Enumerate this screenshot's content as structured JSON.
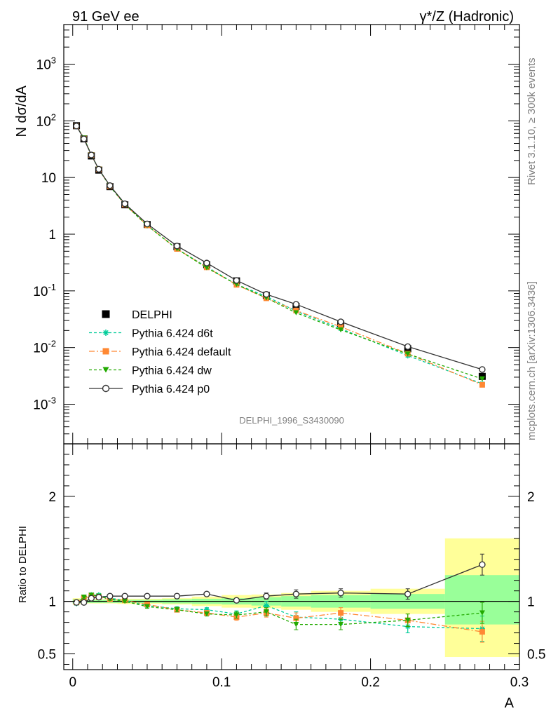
{
  "header": {
    "left_label": "91 GeV ee",
    "right_label": "γ*/Z (Hadronic)"
  },
  "side_labels": {
    "rivet": "Rivet 3.1.10, ≥ 300k events",
    "mcplots": "mcplots.cern.ch [arXiv:1306.3436]"
  },
  "watermark": "DELPHI_1996_S3430090",
  "colors": {
    "data": "#000000",
    "d6t": "#00cc99",
    "default": "#ff8833",
    "dw": "#22aa00",
    "p0": "#333333",
    "band_inner": "#99ff99",
    "band_outer": "#ffff99"
  },
  "chart_data": [
    {
      "type": "line",
      "panel": "main",
      "ylabel": "N dσ/dA",
      "xlabel": "A",
      "xlim": [
        -0.006,
        0.3
      ],
      "ylim": [
        0.0002,
        5000
      ],
      "yscale": "log",
      "ytick_labels": [
        "10^-3",
        "10^-2",
        "10^-1",
        "1",
        "10",
        "10^2",
        "10^3"
      ],
      "x": [
        0.0025,
        0.0075,
        0.0125,
        0.0175,
        0.025,
        0.035,
        0.05,
        0.07,
        0.09,
        0.11,
        0.13,
        0.15,
        0.18,
        0.225,
        0.275
      ],
      "series": [
        {
          "name": "DELPHI",
          "style": "data",
          "values": [
            82,
            48,
            24,
            13.5,
            6.9,
            3.3,
            1.48,
            0.6,
            0.29,
            0.15,
            0.083,
            0.053,
            0.026,
            0.0095,
            0.0031
          ]
        },
        {
          "name": "Pythia 6.424 d6t",
          "style": "d6t",
          "values": [
            80,
            49.5,
            25,
            14,
            7,
            3.35,
            1.42,
            0.55,
            0.265,
            0.13,
            0.08,
            0.044,
            0.0215,
            0.0072,
            0.0023
          ]
        },
        {
          "name": "Pythia 6.424 default",
          "style": "default",
          "values": [
            81,
            49.5,
            25,
            14,
            7,
            3.35,
            1.43,
            0.55,
            0.26,
            0.128,
            0.074,
            0.045,
            0.0233,
            0.0078,
            0.0022
          ]
        },
        {
          "name": "Pythia 6.424 dw",
          "style": "dw",
          "values": [
            80,
            50,
            25,
            14,
            7,
            3.35,
            1.42,
            0.55,
            0.255,
            0.13,
            0.075,
            0.041,
            0.0205,
            0.0077,
            0.0028
          ]
        },
        {
          "name": "Pythia 6.424 p0",
          "style": "p0",
          "values": [
            81,
            48,
            25,
            14,
            7.2,
            3.45,
            1.52,
            0.62,
            0.31,
            0.153,
            0.087,
            0.058,
            0.0285,
            0.0104,
            0.0041
          ]
        }
      ],
      "legend": "left, lower half",
      "grid": false
    },
    {
      "type": "line",
      "panel": "ratio",
      "ylabel": "Ratio to DELPHI",
      "xlabel": "A",
      "xlim": [
        -0.006,
        0.3
      ],
      "ylim": [
        0.35,
        2.5
      ],
      "ytick_labels": [
        "0.5",
        "1",
        "2"
      ],
      "xtick_labels": [
        "0",
        "0.1",
        "0.2",
        "0.3"
      ],
      "bands": [
        {
          "x0": 0,
          "x1": 0.005,
          "inner": [
            0.98,
            1.02
          ],
          "outer": [
            0.97,
            1.03
          ]
        },
        {
          "x0": 0.005,
          "x1": 0.01,
          "inner": [
            0.985,
            1.015
          ],
          "outer": [
            0.98,
            1.02
          ]
        },
        {
          "x0": 0.01,
          "x1": 0.015,
          "inner": [
            0.985,
            1.015
          ],
          "outer": [
            0.98,
            1.02
          ]
        },
        {
          "x0": 0.015,
          "x1": 0.02,
          "inner": [
            0.985,
            1.015
          ],
          "outer": [
            0.98,
            1.02
          ]
        },
        {
          "x0": 0.02,
          "x1": 0.03,
          "inner": [
            0.985,
            1.015
          ],
          "outer": [
            0.98,
            1.02
          ]
        },
        {
          "x0": 0.03,
          "x1": 0.04,
          "inner": [
            0.985,
            1.015
          ],
          "outer": [
            0.975,
            1.025
          ]
        },
        {
          "x0": 0.04,
          "x1": 0.06,
          "inner": [
            0.985,
            1.015
          ],
          "outer": [
            0.975,
            1.025
          ]
        },
        {
          "x0": 0.06,
          "x1": 0.08,
          "inner": [
            0.98,
            1.02
          ],
          "outer": [
            0.97,
            1.03
          ]
        },
        {
          "x0": 0.08,
          "x1": 0.1,
          "inner": [
            0.975,
            1.025
          ],
          "outer": [
            0.955,
            1.045
          ]
        },
        {
          "x0": 0.1,
          "x1": 0.12,
          "inner": [
            0.97,
            1.03
          ],
          "outer": [
            0.94,
            1.06
          ]
        },
        {
          "x0": 0.12,
          "x1": 0.14,
          "inner": [
            0.96,
            1.04
          ],
          "outer": [
            0.935,
            1.065
          ]
        },
        {
          "x0": 0.14,
          "x1": 0.16,
          "inner": [
            0.95,
            1.05
          ],
          "outer": [
            0.92,
            1.08
          ]
        },
        {
          "x0": 0.16,
          "x1": 0.2,
          "inner": [
            0.94,
            1.06
          ],
          "outer": [
            0.9,
            1.1
          ]
        },
        {
          "x0": 0.2,
          "x1": 0.25,
          "inner": [
            0.93,
            1.07
          ],
          "outer": [
            0.88,
            1.12
          ]
        },
        {
          "x0": 0.25,
          "x1": 0.3,
          "inner": [
            0.78,
            1.25
          ],
          "outer": [
            0.47,
            1.6
          ]
        }
      ],
      "x": [
        0.0025,
        0.0075,
        0.0125,
        0.0175,
        0.025,
        0.035,
        0.05,
        0.07,
        0.09,
        0.11,
        0.13,
        0.15,
        0.18,
        0.225,
        0.275
      ],
      "series": [
        {
          "name": "Pythia 6.424 d6t",
          "style": "d6t",
          "values": [
            0.98,
            1.03,
            1.06,
            1.06,
            1.03,
            1.01,
            0.96,
            0.93,
            0.92,
            0.88,
            0.96,
            0.85,
            0.83,
            0.76,
            0.74
          ],
          "err": [
            0.01,
            0.01,
            0.01,
            0.01,
            0.01,
            0.01,
            0.015,
            0.02,
            0.02,
            0.03,
            0.04,
            0.05,
            0.05,
            0.06,
            0.12
          ]
        },
        {
          "name": "Pythia 6.424 default",
          "style": "default",
          "values": [
            0.99,
            1.03,
            1.05,
            1.04,
            1.02,
            1.01,
            0.97,
            0.92,
            0.89,
            0.85,
            0.89,
            0.84,
            0.89,
            0.82,
            0.71
          ],
          "err": [
            0.01,
            0.01,
            0.01,
            0.01,
            0.01,
            0.01,
            0.015,
            0.02,
            0.02,
            0.03,
            0.04,
            0.05,
            0.05,
            0.06,
            0.1
          ]
        },
        {
          "name": "Pythia 6.424 dw",
          "style": "dw",
          "values": [
            0.98,
            1.04,
            1.06,
            1.05,
            1.02,
            1.0,
            0.95,
            0.92,
            0.88,
            0.87,
            0.9,
            0.78,
            0.78,
            0.82,
            0.89
          ],
          "err": [
            0.01,
            0.01,
            0.01,
            0.01,
            0.01,
            0.01,
            0.015,
            0.02,
            0.02,
            0.03,
            0.04,
            0.05,
            0.05,
            0.06,
            0.1
          ]
        },
        {
          "name": "Pythia 6.424 p0",
          "style": "p0",
          "values": [
            0.99,
            0.99,
            1.03,
            1.04,
            1.05,
            1.05,
            1.05,
            1.05,
            1.07,
            1.01,
            1.05,
            1.07,
            1.08,
            1.07,
            1.35
          ],
          "err": [
            0.01,
            0.01,
            0.01,
            0.01,
            0.01,
            0.01,
            0.01,
            0.01,
            0.015,
            0.02,
            0.03,
            0.04,
            0.04,
            0.05,
            0.1
          ]
        }
      ],
      "reference_line": 1,
      "grid": false
    }
  ]
}
